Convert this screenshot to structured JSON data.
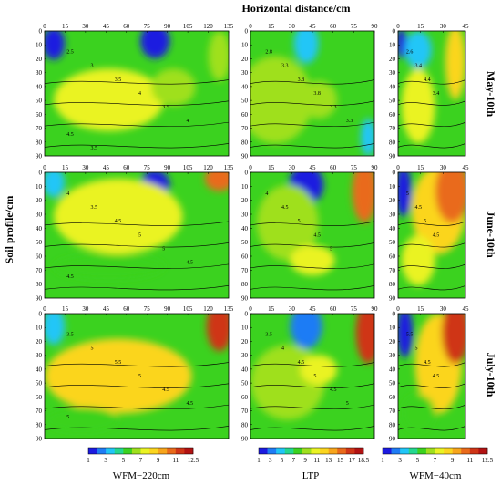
{
  "figure": {
    "x_title": "Horizontal distance/cm",
    "y_title": "Soil profile/cm",
    "row_labels": [
      "May-10th",
      "June-10th",
      "July-10th"
    ],
    "colorbar_labels": [
      "WFM−220cm",
      "LTP",
      "WFM−40cm"
    ],
    "colorbar_ticks": [
      [
        "1",
        "3",
        "5",
        "7",
        "9",
        "11",
        "12.5"
      ],
      [
        "1",
        "3",
        "5",
        "7",
        "9",
        "11",
        "13",
        "15",
        "17",
        "18.5"
      ],
      [
        "1",
        "3",
        "5",
        "7",
        "9",
        "11",
        "12.5"
      ]
    ],
    "colorbar_colors": [
      "#1c1ae0",
      "#1f7cf5",
      "#21c6f7",
      "#24d78f",
      "#3bd21f",
      "#9fe01e",
      "#eaf324",
      "#fbd51f",
      "#f7a51c",
      "#e96a1b",
      "#cf3517",
      "#b21212"
    ]
  },
  "chart_data": [
    {
      "type": "heatmap",
      "title": "May-10th WFM−220cm",
      "x_ticks": [
        0,
        15,
        30,
        45,
        60,
        75,
        90,
        105,
        120,
        135
      ],
      "y_ticks": [
        0,
        10,
        20,
        30,
        40,
        50,
        60,
        70,
        80,
        90
      ],
      "contour_labels": [
        "2.5",
        "3",
        "3.5",
        "4",
        "3.5",
        "4",
        "4.5",
        "3.5"
      ]
    },
    {
      "type": "heatmap",
      "title": "May-10th LTP",
      "x_ticks": [
        0,
        15,
        30,
        45,
        60,
        75,
        90
      ],
      "y_ticks": [
        0,
        10,
        20,
        30,
        40,
        50,
        60,
        70,
        80,
        90
      ],
      "contour_labels": [
        "2.8",
        "3.3",
        "3.8",
        "3.8",
        "3.3",
        "3.3"
      ]
    },
    {
      "type": "heatmap",
      "title": "May-10th WFM−40cm",
      "x_ticks": [
        0,
        15,
        30,
        45
      ],
      "y_ticks": [
        0,
        10,
        20,
        30,
        40,
        50,
        60,
        70,
        80,
        90
      ],
      "contour_labels": [
        "2.6",
        "3.4",
        "4.4",
        "3.4"
      ]
    },
    {
      "type": "heatmap",
      "title": "June-10th WFM−220cm",
      "x_ticks": [
        0,
        15,
        30,
        45,
        60,
        75,
        90,
        105,
        120,
        135
      ],
      "y_ticks": [
        0,
        10,
        20,
        30,
        40,
        50,
        60,
        70,
        80,
        90
      ],
      "contour_labels": [
        "4",
        "3.5",
        "4.5",
        "5",
        "5",
        "4.5",
        "4.5"
      ]
    },
    {
      "type": "heatmap",
      "title": "June-10th LTP",
      "x_ticks": [
        0,
        15,
        30,
        45,
        60,
        75,
        90
      ],
      "y_ticks": [
        0,
        10,
        20,
        30,
        40,
        50,
        60,
        70,
        80,
        90
      ],
      "contour_labels": [
        "4",
        "4.5",
        "5",
        "4.5",
        "5"
      ]
    },
    {
      "type": "heatmap",
      "title": "June-10th WFM−40cm",
      "x_ticks": [
        0,
        15,
        30,
        45
      ],
      "y_ticks": [
        0,
        10,
        20,
        30,
        40,
        50,
        60,
        70,
        80,
        90
      ],
      "contour_labels": [
        "5",
        "4.5",
        "5",
        "4.5"
      ]
    },
    {
      "type": "heatmap",
      "title": "July-10th WFM−220cm",
      "x_ticks": [
        0,
        15,
        30,
        45,
        60,
        75,
        90,
        105,
        120,
        135
      ],
      "y_ticks": [
        0,
        10,
        20,
        30,
        40,
        50,
        60,
        70,
        80,
        90
      ],
      "contour_labels": [
        "3.5",
        "5",
        "5.5",
        "5",
        "4.5",
        "4.5",
        "5"
      ]
    },
    {
      "type": "heatmap",
      "title": "July-10th LTP",
      "x_ticks": [
        0,
        15,
        30,
        45,
        60,
        75,
        90
      ],
      "y_ticks": [
        0,
        10,
        20,
        30,
        40,
        50,
        60,
        70,
        80,
        90
      ],
      "contour_labels": [
        "3.5",
        "4",
        "4.5",
        "5",
        "4.5",
        "5"
      ]
    },
    {
      "type": "heatmap",
      "title": "July-10th WFM−40cm",
      "x_ticks": [
        0,
        15,
        30,
        45
      ],
      "y_ticks": [
        0,
        10,
        20,
        30,
        40,
        50,
        60,
        70,
        80,
        90
      ],
      "contour_labels": [
        "5.5",
        "5",
        "4.5",
        "4.5"
      ]
    }
  ]
}
